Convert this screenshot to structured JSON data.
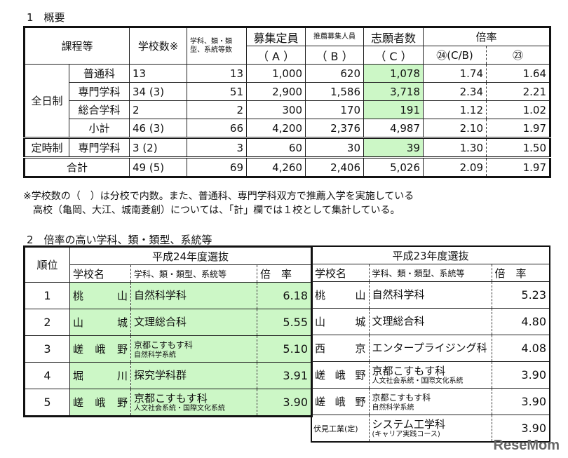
{
  "section1": {
    "title": "1　概要",
    "headers": {
      "course": "課程等",
      "schools": "学校数※",
      "depts": "学科、類・類型、系統等数",
      "capacity": "募集定員",
      "capacity_sub": "（ A ）",
      "rec": "推薦募集人員",
      "rec_sub": "（ B ）",
      "applicants": "志願者数",
      "applicants_sub": "（ C ）",
      "ratio": "倍率",
      "ratio24": "㉔(C/B)",
      "ratio23": "㉓"
    },
    "groups": {
      "fulltime": "全日制",
      "parttime": "定時制"
    },
    "rows": [
      {
        "label": "普通科",
        "schools": "13",
        "depts": "13",
        "a": "1,000",
        "b": "620",
        "c": "1,078",
        "r24": "1.74",
        "r23": "1.64",
        "hl": true
      },
      {
        "label": "専門学科",
        "schools": "34 (3)",
        "depts": "51",
        "a": "2,900",
        "b": "1,586",
        "c": "3,718",
        "r24": "2.34",
        "r23": "2.21",
        "hl": true
      },
      {
        "label": "総合学科",
        "schools": "2",
        "depts": "2",
        "a": "300",
        "b": "170",
        "c": "191",
        "r24": "1.12",
        "r23": "1.02",
        "hl": true
      },
      {
        "label": "小計",
        "schools": "46 (3)",
        "depts": "66",
        "a": "4,200",
        "b": "2,376",
        "c": "4,987",
        "r24": "2.10",
        "r23": "1.97",
        "hl": false
      },
      {
        "label": "専門学科",
        "schools": "3 (2)",
        "depts": "3",
        "a": "60",
        "b": "30",
        "c": "39",
        "r24": "1.30",
        "r23": "1.50",
        "hl": true
      },
      {
        "label": "合計",
        "schools": "49 (5)",
        "depts": "69",
        "a": "4,260",
        "b": "2,406",
        "c": "5,026",
        "r24": "2.09",
        "r23": "1.97",
        "hl": false
      }
    ],
    "note1": "※学校数の（　）は分校で内数。また、普通科、専門学科双方で推薦入学を実施している",
    "note2": "　高校（亀岡、大江、城南菱創）については、「計」欄では１校として集計している。"
  },
  "section2": {
    "title": "2　倍率の高い学科、類・類型、系統等",
    "rank_header": "順位",
    "h24": "平成24年度選抜",
    "h23": "平成23年度選抜",
    "col_school": "学校名",
    "col_dept": "学科、類・類型、系統等",
    "col_ratio": "倍　率",
    "rows24": [
      {
        "rank": "1",
        "school": "桃　　山",
        "dept": "自然科学科",
        "sub": "",
        "ratio": "6.18"
      },
      {
        "rank": "2",
        "school": "山　　城",
        "dept": "文理総合科",
        "sub": "",
        "ratio": "5.55"
      },
      {
        "rank": "3",
        "school": "嵯峨野",
        "dept": "京都こすもす科",
        "sub": "自然科学系統",
        "ratio": "5.10"
      },
      {
        "rank": "4",
        "school": "堀　　川",
        "dept": "探究学科群",
        "sub": "",
        "ratio": "3.91"
      },
      {
        "rank": "5",
        "school": "嵯峨野",
        "dept": "京都こすもす科",
        "sub": "人文社会系統・国際文化系統",
        "ratio": "3.90"
      }
    ],
    "rows23": [
      {
        "school": "桃　　山",
        "dept": "自然科学科",
        "sub": "",
        "ratio": "5.23"
      },
      {
        "school": "山　　城",
        "dept": "文理総合科",
        "sub": "",
        "ratio": "4.80"
      },
      {
        "school": "西　　京",
        "dept": "エンタープライジング科",
        "sub": "",
        "ratio": "4.08"
      },
      {
        "school": "嵯峨野",
        "dept": "京都こすもす科",
        "sub": "人文社会系統・国際文化系統",
        "ratio": "3.90"
      },
      {
        "school": "嵯峨野",
        "dept": "京都こすもす科",
        "sub": "自然科学系統",
        "ratio": "3.90"
      },
      {
        "school": "伏見工業(定)",
        "dept": "システム工学科",
        "sub": "(キャリア実践コース)",
        "ratio": "3.90"
      }
    ],
    "highlight_color": "#ccf7c6"
  },
  "watermark": "ReseMom"
}
